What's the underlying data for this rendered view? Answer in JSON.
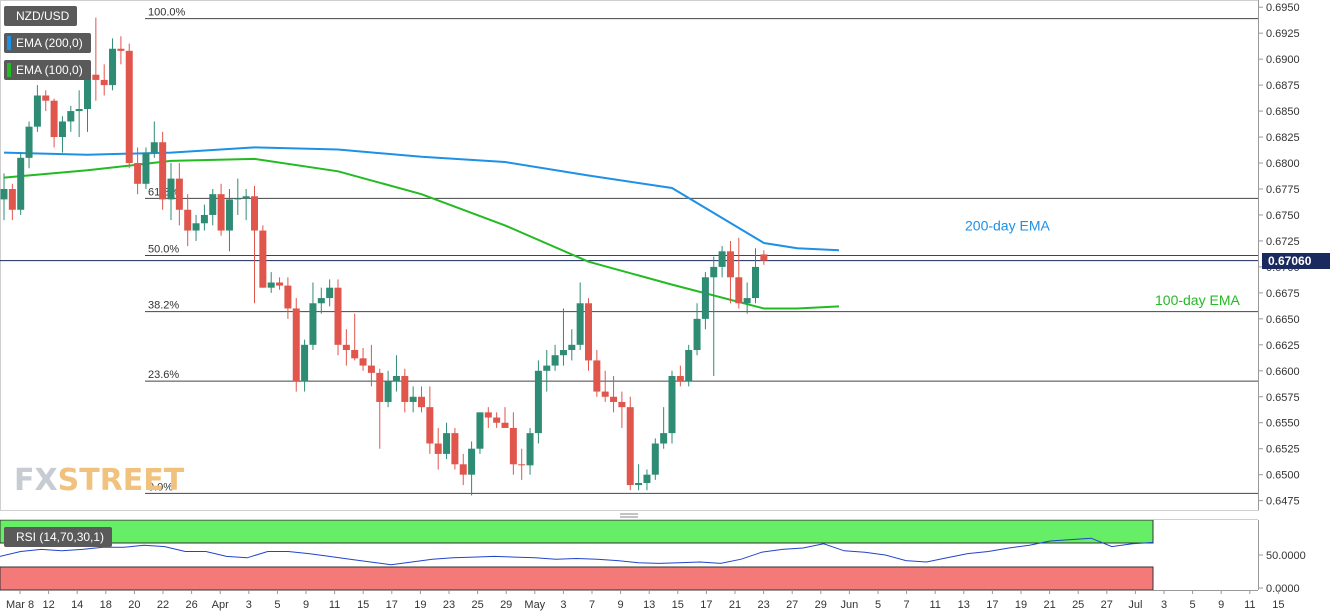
{
  "legend": {
    "symbol": "NZD/USD",
    "ema200": "EMA (200,0)",
    "ema100": "EMA (100,0)",
    "rsi": "RSI (14,70,30,1)"
  },
  "colors": {
    "bull": "#2e8b74",
    "bear": "#e0554c",
    "ema200": "#1e90e6",
    "ema100": "#22bb22",
    "rsi_line": "#2244cc",
    "overbought": "#66ee66",
    "oversold": "#f47a7a"
  },
  "watermark": {
    "fx": "FX",
    "street": "STREET"
  },
  "chart_data": {
    "type": "candlestick",
    "symbol": "NZD/USD",
    "last_price": "0.67060",
    "ylim": [
      0.6466,
      0.6955
    ],
    "y_ticks": [
      "0.6475",
      "0.6500",
      "0.6525",
      "0.6550",
      "0.6575",
      "0.6600",
      "0.6625",
      "0.6650",
      "0.6675",
      "0.6700",
      "0.6725",
      "0.6750",
      "0.6775",
      "0.6800",
      "0.6825",
      "0.6850",
      "0.6875",
      "0.6900",
      "0.6925",
      "0.6950"
    ],
    "x_labels": [
      "Mar 8",
      "12",
      "14",
      "18",
      "20",
      "22",
      "26",
      "Apr",
      "3",
      "5",
      "9",
      "11",
      "15",
      "17",
      "19",
      "23",
      "25",
      "29",
      "May",
      "3",
      "7",
      "9",
      "13",
      "15",
      "17",
      "21",
      "23",
      "27",
      "29",
      "Jun",
      "5",
      "7",
      "11",
      "13",
      "17",
      "19",
      "21",
      "25",
      "27",
      "Jul",
      "3",
      "5",
      "9",
      "11",
      "15"
    ],
    "fibonacci": [
      {
        "label": "100.0%",
        "price": 0.6939
      },
      {
        "label": "61.8%",
        "price": 0.6766
      },
      {
        "label": "50.0%",
        "price": 0.6711
      },
      {
        "label": "38.2%",
        "price": 0.6657
      },
      {
        "label": "23.6%",
        "price": 0.659
      },
      {
        "label": "0.0%",
        "price": 0.6482
      }
    ],
    "candles": [
      [
        0.6765,
        0.679,
        0.6745,
        0.6775
      ],
      [
        0.6775,
        0.678,
        0.6745,
        0.6755
      ],
      [
        0.6755,
        0.681,
        0.675,
        0.6805
      ],
      [
        0.6805,
        0.684,
        0.6795,
        0.6835
      ],
      [
        0.6835,
        0.6875,
        0.683,
        0.6865
      ],
      [
        0.6865,
        0.687,
        0.685,
        0.686
      ],
      [
        0.686,
        0.6862,
        0.6815,
        0.6825
      ],
      [
        0.6825,
        0.6845,
        0.681,
        0.684
      ],
      [
        0.684,
        0.6855,
        0.683,
        0.685
      ],
      [
        0.685,
        0.687,
        0.6825,
        0.6852
      ],
      [
        0.6852,
        0.6895,
        0.683,
        0.6885
      ],
      [
        0.6885,
        0.694,
        0.686,
        0.688
      ],
      [
        0.688,
        0.6895,
        0.6865,
        0.6875
      ],
      [
        0.6875,
        0.692,
        0.687,
        0.691
      ],
      [
        0.691,
        0.6922,
        0.6895,
        0.6908
      ],
      [
        0.6908,
        0.6915,
        0.6795,
        0.68
      ],
      [
        0.68,
        0.6815,
        0.677,
        0.678
      ],
      [
        0.678,
        0.6815,
        0.6775,
        0.681
      ],
      [
        0.681,
        0.684,
        0.6805,
        0.682
      ],
      [
        0.682,
        0.683,
        0.6755,
        0.6765
      ],
      [
        0.6765,
        0.68,
        0.6745,
        0.6785
      ],
      [
        0.6785,
        0.68,
        0.674,
        0.6755
      ],
      [
        0.6755,
        0.677,
        0.672,
        0.6735
      ],
      [
        0.6735,
        0.675,
        0.6725,
        0.6742
      ],
      [
        0.6742,
        0.676,
        0.6735,
        0.675
      ],
      [
        0.675,
        0.6775,
        0.674,
        0.677
      ],
      [
        0.677,
        0.678,
        0.673,
        0.6735
      ],
      [
        0.6735,
        0.6775,
        0.6715,
        0.6765
      ],
      [
        0.6765,
        0.6785,
        0.675,
        0.6766
      ],
      [
        0.6766,
        0.6775,
        0.6745,
        0.6768
      ],
      [
        0.6768,
        0.6778,
        0.6665,
        0.6735
      ],
      [
        0.6735,
        0.674,
        0.668,
        0.668
      ],
      [
        0.668,
        0.6695,
        0.6675,
        0.6685
      ],
      [
        0.6685,
        0.669,
        0.6678,
        0.6682
      ],
      [
        0.6682,
        0.669,
        0.665,
        0.666
      ],
      [
        0.666,
        0.667,
        0.658,
        0.659
      ],
      [
        0.659,
        0.663,
        0.658,
        0.6625
      ],
      [
        0.6625,
        0.6685,
        0.662,
        0.6665
      ],
      [
        0.6665,
        0.668,
        0.6655,
        0.667
      ],
      [
        0.667,
        0.6688,
        0.6662,
        0.668
      ],
      [
        0.668,
        0.6688,
        0.6615,
        0.6625
      ],
      [
        0.6625,
        0.664,
        0.6605,
        0.662
      ],
      [
        0.662,
        0.6655,
        0.661,
        0.6612
      ],
      [
        0.6612,
        0.6622,
        0.66,
        0.6605
      ],
      [
        0.6605,
        0.6625,
        0.6585,
        0.6598
      ],
      [
        0.6598,
        0.6602,
        0.6525,
        0.657
      ],
      [
        0.657,
        0.66,
        0.6565,
        0.659
      ],
      [
        0.659,
        0.6615,
        0.658,
        0.6595
      ],
      [
        0.6595,
        0.6602,
        0.656,
        0.657
      ],
      [
        0.657,
        0.6585,
        0.656,
        0.6575
      ],
      [
        0.6575,
        0.6585,
        0.656,
        0.6565
      ],
      [
        0.6565,
        0.6585,
        0.652,
        0.653
      ],
      [
        0.653,
        0.6545,
        0.6505,
        0.652
      ],
      [
        0.652,
        0.655,
        0.6515,
        0.654
      ],
      [
        0.654,
        0.6545,
        0.6505,
        0.651
      ],
      [
        0.651,
        0.652,
        0.649,
        0.65
      ],
      [
        0.65,
        0.6532,
        0.648,
        0.6525
      ],
      [
        0.6525,
        0.656,
        0.652,
        0.656
      ],
      [
        0.656,
        0.6565,
        0.6545,
        0.6555
      ],
      [
        0.6555,
        0.656,
        0.6545,
        0.655
      ],
      [
        0.655,
        0.6565,
        0.6545,
        0.6545
      ],
      [
        0.6545,
        0.656,
        0.65,
        0.651
      ],
      [
        0.651,
        0.6525,
        0.6495,
        0.6509
      ],
      [
        0.6509,
        0.6545,
        0.65,
        0.654
      ],
      [
        0.654,
        0.661,
        0.653,
        0.66
      ],
      [
        0.66,
        0.662,
        0.658,
        0.6605
      ],
      [
        0.6605,
        0.6625,
        0.66,
        0.6615
      ],
      [
        0.6615,
        0.666,
        0.6605,
        0.662
      ],
      [
        0.662,
        0.664,
        0.661,
        0.6625
      ],
      [
        0.6625,
        0.6685,
        0.662,
        0.6665
      ],
      [
        0.6665,
        0.667,
        0.66,
        0.661
      ],
      [
        0.661,
        0.662,
        0.6575,
        0.658
      ],
      [
        0.658,
        0.66,
        0.657,
        0.6575
      ],
      [
        0.6575,
        0.6595,
        0.656,
        0.657
      ],
      [
        0.657,
        0.658,
        0.6545,
        0.6565
      ],
      [
        0.6565,
        0.6575,
        0.6485,
        0.649
      ],
      [
        0.649,
        0.651,
        0.6485,
        0.6492
      ],
      [
        0.6492,
        0.6505,
        0.6485,
        0.65
      ],
      [
        0.65,
        0.6535,
        0.6495,
        0.653
      ],
      [
        0.653,
        0.6565,
        0.6525,
        0.654
      ],
      [
        0.654,
        0.66,
        0.653,
        0.6595
      ],
      [
        0.6595,
        0.6605,
        0.6585,
        0.659
      ],
      [
        0.659,
        0.6625,
        0.6585,
        0.662
      ],
      [
        0.662,
        0.6665,
        0.6615,
        0.665
      ],
      [
        0.665,
        0.6695,
        0.664,
        0.669
      ],
      [
        0.669,
        0.671,
        0.6595,
        0.67
      ],
      [
        0.67,
        0.672,
        0.669,
        0.6715
      ],
      [
        0.6715,
        0.6725,
        0.6665,
        0.669
      ],
      [
        0.669,
        0.6728,
        0.666,
        0.6665
      ],
      [
        0.6665,
        0.6685,
        0.6655,
        0.667
      ],
      [
        0.667,
        0.6718,
        0.6665,
        0.67
      ],
      [
        0.6712,
        0.6716,
        0.6702,
        0.6706
      ]
    ],
    "ema200": [
      [
        0,
        0.681
      ],
      [
        10,
        0.6808
      ],
      [
        20,
        0.681
      ],
      [
        30,
        0.6815
      ],
      [
        40,
        0.6813
      ],
      [
        50,
        0.6806
      ],
      [
        60,
        0.6801
      ],
      [
        70,
        0.6788
      ],
      [
        80,
        0.6776
      ],
      [
        91,
        0.6723
      ],
      [
        95,
        0.6718
      ],
      [
        100,
        0.6716
      ]
    ],
    "ema100": [
      [
        0,
        0.6786
      ],
      [
        10,
        0.6793
      ],
      [
        20,
        0.6802
      ],
      [
        30,
        0.6804
      ],
      [
        40,
        0.6792
      ],
      [
        50,
        0.677
      ],
      [
        60,
        0.674
      ],
      [
        70,
        0.6705
      ],
      [
        80,
        0.6683
      ],
      [
        91,
        0.666
      ],
      [
        95,
        0.666
      ],
      [
        100,
        0.6662
      ]
    ],
    "annotations": [
      {
        "text": "200-day EMA",
        "price": 0.6735
      },
      {
        "text": "100-day EMA",
        "price": 0.6666
      }
    ],
    "rsi": {
      "label": "RSI (14,70,30,1)",
      "ylim": [
        0,
        100
      ],
      "ticks": [
        "50.0000",
        "0.0000"
      ],
      "overbought": 70,
      "oversold": 30,
      "values": [
        [
          0,
          48
        ],
        [
          5,
          55
        ],
        [
          10,
          58
        ],
        [
          15,
          56
        ],
        [
          20,
          58
        ],
        [
          25,
          61
        ],
        [
          30,
          61
        ],
        [
          35,
          64
        ],
        [
          40,
          62
        ],
        [
          45,
          55
        ],
        [
          50,
          55
        ],
        [
          55,
          48
        ],
        [
          60,
          46
        ],
        [
          65,
          55
        ],
        [
          70,
          55
        ],
        [
          75,
          52
        ],
        [
          80,
          48
        ],
        [
          85,
          44
        ],
        [
          90,
          40
        ],
        [
          95,
          36
        ],
        [
          100,
          40
        ],
        [
          105,
          44
        ],
        [
          110,
          46
        ],
        [
          115,
          47
        ],
        [
          120,
          48
        ],
        [
          125,
          47
        ],
        [
          130,
          46
        ],
        [
          135,
          44
        ],
        [
          140,
          45
        ],
        [
          145,
          44
        ],
        [
          150,
          42
        ],
        [
          155,
          39
        ],
        [
          160,
          38
        ],
        [
          165,
          39
        ],
        [
          170,
          40
        ],
        [
          175,
          38
        ],
        [
          180,
          44
        ],
        [
          185,
          54
        ],
        [
          190,
          58
        ],
        [
          195,
          60
        ],
        [
          200,
          66
        ],
        [
          205,
          56
        ],
        [
          210,
          54
        ],
        [
          215,
          50
        ],
        [
          220,
          42
        ],
        [
          225,
          40
        ],
        [
          230,
          46
        ],
        [
          235,
          52
        ],
        [
          240,
          55
        ],
        [
          245,
          60
        ],
        [
          250,
          64
        ],
        [
          255,
          70
        ],
        [
          260,
          72
        ],
        [
          265,
          74
        ],
        [
          270,
          62
        ],
        [
          275,
          66
        ],
        [
          280,
          68
        ]
      ]
    }
  }
}
